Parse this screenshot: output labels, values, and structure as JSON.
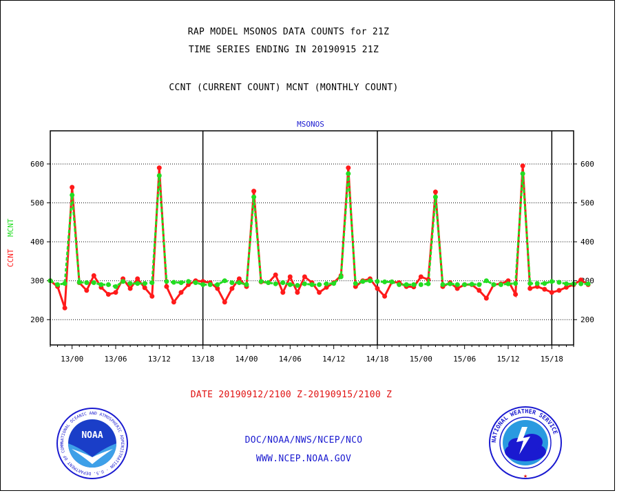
{
  "header": {
    "title1": "RAP MODEL MSONOS DATA COUNTS for 21Z",
    "title2": "TIME SERIES ENDING IN 20190915 21Z",
    "subtitle": "CCNT (CURRENT COUNT) MCNT (MONTHLY COUNT)"
  },
  "footer": {
    "date_range": "DATE 20190912/2100 Z-20190915/2100 Z",
    "credit": "DOC/NOAA/NWS/NCEP/NCO",
    "url": "WWW.NCEP.NOAA.GOV"
  },
  "logos": {
    "left_text": "NOAA",
    "left_ring_text": "NATIONAL OCEANIC AND ATMOSPHERIC ADMINISTRATION · U.S. DEPARTMENT OF COMMERCE",
    "right_ring_text": "NATIONAL WEATHER SERVICE"
  },
  "colors": {
    "ccnt": "#ff1a1a",
    "mcnt": "#22dd22",
    "text_blue": "#1a1ad0",
    "text_red": "#e01010"
  },
  "chart_data": {
    "type": "line",
    "title": "MSONOS",
    "ylabel_ccnt": "CCNT",
    "ylabel_mcnt": "MCNT",
    "ylim": [
      135,
      685
    ],
    "yticks": [
      200,
      300,
      400,
      500,
      600
    ],
    "x_start_hour": -3,
    "x_end_hour": 69,
    "xtick_labels": [
      {
        "label": "13/00",
        "hour": 0
      },
      {
        "label": "13/06",
        "hour": 6
      },
      {
        "label": "13/12",
        "hour": 12
      },
      {
        "label": "13/18",
        "hour": 18
      },
      {
        "label": "14/00",
        "hour": 24
      },
      {
        "label": "14/06",
        "hour": 30
      },
      {
        "label": "14/12",
        "hour": 36
      },
      {
        "label": "14/18",
        "hour": 42
      },
      {
        "label": "15/00",
        "hour": 48
      },
      {
        "label": "15/06",
        "hour": 54
      },
      {
        "label": "15/12",
        "hour": 60
      },
      {
        "label": "15/18",
        "hour": 66
      }
    ],
    "day_dividers_hours": [
      18,
      42,
      66
    ],
    "grid": true,
    "series": [
      {
        "name": "CCNT",
        "values": [
          300,
          285,
          230,
          540,
          295,
          275,
          313,
          283,
          265,
          270,
          305,
          280,
          305,
          282,
          260,
          590,
          285,
          245,
          270,
          290,
          300,
          298,
          295,
          280,
          245,
          280,
          305,
          285,
          530,
          297,
          295,
          315,
          270,
          310,
          270,
          310,
          295,
          270,
          283,
          295,
          313,
          590,
          285,
          300,
          305,
          280,
          260,
          297,
          295,
          285,
          284,
          310,
          303,
          528,
          285,
          295,
          280,
          290,
          290,
          275,
          255,
          290,
          292,
          300,
          265,
          595,
          280,
          285,
          278,
          270,
          275,
          283,
          290,
          302,
          290
        ]
      },
      {
        "name": "MCNT",
        "values": [
          300,
          290,
          293,
          520,
          296,
          295,
          295,
          290,
          290,
          285,
          298,
          293,
          293,
          293,
          295,
          570,
          298,
          296,
          295,
          298,
          295,
          290,
          290,
          290,
          300,
          295,
          295,
          290,
          515,
          298,
          295,
          292,
          295,
          290,
          288,
          292,
          290,
          290,
          292,
          293,
          310,
          575,
          293,
          298,
          300,
          298,
          297,
          297,
          290,
          290,
          290,
          290,
          292,
          515,
          290,
          292,
          290,
          290,
          291,
          290,
          300,
          290,
          290,
          292,
          293,
          575,
          293,
          293,
          293,
          298,
          296,
          292,
          292,
          292,
          292
        ]
      }
    ]
  }
}
